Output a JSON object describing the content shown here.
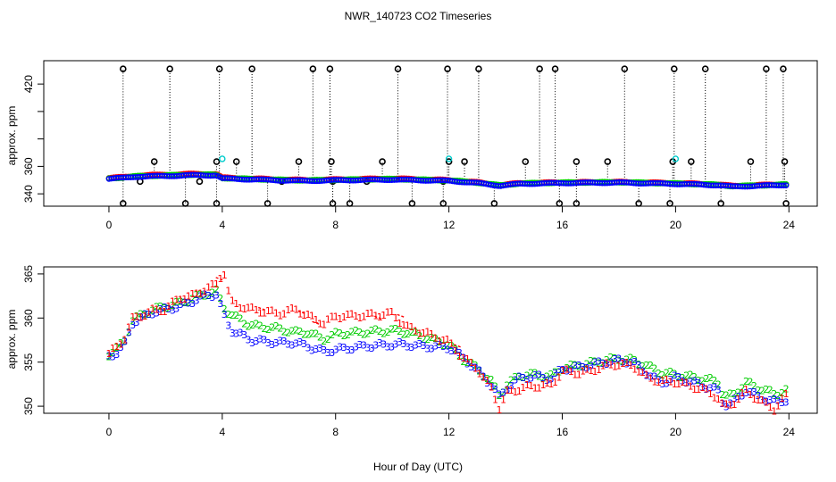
{
  "chart_data": [
    {
      "type": "scatter",
      "panel": "top",
      "title": "NWR_140723  CO2 Timeseries",
      "xlabel": "",
      "ylabel": "approx. ppm",
      "xlim": [
        -2.3,
        25
      ],
      "ylim": [
        331,
        437
      ],
      "xticks": [
        0,
        4,
        8,
        12,
        16,
        20,
        24
      ],
      "yticks": [
        340,
        360,
        380,
        400,
        420
      ],
      "ytick_labels_shown": [
        "340",
        "360",
        "420"
      ],
      "clip_high": 431,
      "clip_low": 333,
      "series": [
        {
          "name": "red",
          "color": "#ff0000",
          "anchors": [
            [
              0,
              351.5
            ],
            [
              0.5,
              352.2
            ],
            [
              1,
              353.3
            ],
            [
              2,
              354
            ],
            [
              3,
              354.5
            ],
            [
              3.8,
              354.5
            ],
            [
              4,
              351.8
            ],
            [
              6,
              350.5
            ],
            [
              7,
              350
            ],
            [
              8,
              350.5
            ],
            [
              10,
              351.2
            ],
            [
              12,
              350
            ],
            [
              13,
              348.4
            ],
            [
              13.8,
              346.3
            ],
            [
              14.5,
              347.8
            ],
            [
              16,
              348.3
            ],
            [
              18,
              348.6
            ],
            [
              19.5,
              348
            ],
            [
              20,
              347.8
            ],
            [
              21.5,
              346.8
            ],
            [
              22,
              345.8
            ],
            [
              23,
              346.4
            ],
            [
              23.9,
              347
            ]
          ]
        },
        {
          "name": "green",
          "color": "#00cc00",
          "anchors": [
            [
              0,
              351.3
            ],
            [
              0.5,
              351.9
            ],
            [
              1,
              352.9
            ],
            [
              2,
              353.4
            ],
            [
              3,
              354
            ],
            [
              3.8,
              353.9
            ],
            [
              4,
              351.5
            ],
            [
              6,
              350.2
            ],
            [
              7,
              349.8
            ],
            [
              8,
              350.2
            ],
            [
              10,
              350.8
            ],
            [
              12,
              349.8
            ],
            [
              13,
              348.2
            ],
            [
              13.8,
              346.2
            ],
            [
              14.5,
              347.6
            ],
            [
              16,
              348.2
            ],
            [
              18,
              348.5
            ],
            [
              19.5,
              347.8
            ],
            [
              20,
              347.6
            ],
            [
              21.5,
              346.6
            ],
            [
              22,
              345.6
            ],
            [
              23,
              346.2
            ],
            [
              23.9,
              346.8
            ]
          ]
        },
        {
          "name": "blue",
          "color": "#0000ff",
          "anchors": [
            [
              0,
              351
            ],
            [
              0.5,
              351.6
            ],
            [
              1,
              352.6
            ],
            [
              2,
              353
            ],
            [
              3,
              353.6
            ],
            [
              3.8,
              353.5
            ],
            [
              4,
              351.2
            ],
            [
              6,
              349.9
            ],
            [
              7,
              349.5
            ],
            [
              8,
              349.9
            ],
            [
              10,
              350.4
            ],
            [
              12,
              349.5
            ],
            [
              13,
              347.9
            ],
            [
              13.8,
              345.9
            ],
            [
              14.5,
              347.3
            ],
            [
              16,
              347.9
            ],
            [
              18,
              348.2
            ],
            [
              19.5,
              347.5
            ],
            [
              20,
              347.3
            ],
            [
              21.5,
              346.3
            ],
            [
              22,
              345.3
            ],
            [
              23,
              345.9
            ],
            [
              23.9,
              346.5
            ]
          ]
        }
      ],
      "cyan_points": [
        [
          4,
          365.5
        ],
        [
          12,
          365.5
        ],
        [
          20,
          365.5
        ]
      ],
      "spikes_high": [
        0.5,
        2.15,
        3.9,
        5.05,
        7.2,
        7.8,
        10.2,
        11.95,
        13.05,
        15.2,
        15.75,
        18.2,
        19.95,
        21.05,
        23.2,
        23.8
      ],
      "spikes_mid": [
        1.6,
        3.8,
        4.5,
        6.7,
        7.85,
        9.65,
        12,
        12.55,
        14.7,
        16.5,
        17.6,
        19.9,
        20.55,
        22.65,
        23.85
      ],
      "spikes_low": [
        0.5,
        2.7,
        3.8,
        5.6,
        7.9,
        8.5,
        10.7,
        11.8,
        13.6,
        15.9,
        16.5,
        18.7,
        19.8,
        21.6,
        23.9
      ],
      "outliers_mid": [
        [
          1.1,
          349
        ],
        [
          3.2,
          349
        ],
        [
          6.1,
          349
        ],
        [
          7.9,
          349
        ],
        [
          9.1,
          349
        ],
        [
          11.8,
          349
        ]
      ]
    },
    {
      "type": "scatter",
      "panel": "bottom",
      "title": "",
      "xlabel": "Hour of Day (UTC)",
      "ylabel": "approx. ppm",
      "xlim": [
        -2.3,
        25
      ],
      "ylim": [
        349.2,
        365.8
      ],
      "xticks": [
        0,
        4,
        8,
        12,
        16,
        20,
        24
      ],
      "yticks": [
        350,
        355,
        360,
        365
      ],
      "series": [
        {
          "name": "1",
          "marker": "1",
          "color": "#ff0000",
          "anchors": [
            [
              0,
              356
            ],
            [
              0.3,
              356.7
            ],
            [
              0.6,
              358
            ],
            [
              0.8,
              359.8
            ],
            [
              1.5,
              360.8
            ],
            [
              2,
              361
            ],
            [
              2.5,
              362.3
            ],
            [
              3,
              362.5
            ],
            [
              3.2,
              363
            ],
            [
              3.8,
              363.8
            ],
            [
              4.05,
              365.5
            ],
            [
              4.3,
              361.8
            ],
            [
              5,
              361
            ],
            [
              6,
              360.5
            ],
            [
              6.6,
              361
            ],
            [
              7,
              360.3
            ],
            [
              7.6,
              359.4
            ],
            [
              8,
              360.2
            ],
            [
              9,
              360.3
            ],
            [
              10,
              360.5
            ],
            [
              10.5,
              359
            ],
            [
              11,
              358.5
            ],
            [
              12,
              357.3
            ],
            [
              12.5,
              355.5
            ],
            [
              13,
              354.3
            ],
            [
              13.5,
              352
            ],
            [
              13.8,
              349.7
            ],
            [
              14,
              351.5
            ],
            [
              14.5,
              352
            ],
            [
              15,
              352.3
            ],
            [
              15.6,
              352.4
            ],
            [
              16,
              354
            ],
            [
              16.5,
              353.8
            ],
            [
              17,
              354
            ],
            [
              17.5,
              354.6
            ],
            [
              18,
              354.8
            ],
            [
              18.5,
              354.6
            ],
            [
              19,
              353.3
            ],
            [
              19.5,
              352.8
            ],
            [
              20,
              352.8
            ],
            [
              21,
              351.9
            ],
            [
              21.5,
              351
            ],
            [
              21.7,
              349.9
            ],
            [
              22,
              350.3
            ],
            [
              22.5,
              351.7
            ],
            [
              23,
              350.6
            ],
            [
              23.5,
              349.7
            ],
            [
              23.9,
              351.2
            ]
          ]
        },
        {
          "name": "2",
          "marker": "2",
          "color": "#00cc00",
          "anchors": [
            [
              0,
              355.9
            ],
            [
              0.3,
              356.5
            ],
            [
              0.6,
              357.6
            ],
            [
              0.8,
              359.7
            ],
            [
              1.5,
              360.9
            ],
            [
              2,
              361.3
            ],
            [
              2.5,
              361.7
            ],
            [
              3,
              362.3
            ],
            [
              3.5,
              362.8
            ],
            [
              3.8,
              363
            ],
            [
              4.05,
              361.3
            ],
            [
              4.3,
              360.4
            ],
            [
              5,
              359.2
            ],
            [
              6,
              358.8
            ],
            [
              6.6,
              358.4
            ],
            [
              7,
              358.4
            ],
            [
              7.6,
              357.6
            ],
            [
              8,
              358.2
            ],
            [
              9,
              358.4
            ],
            [
              10,
              358.6
            ],
            [
              10.5,
              358.4
            ],
            [
              11,
              358
            ],
            [
              12,
              357
            ],
            [
              12.5,
              355.4
            ],
            [
              13,
              354.3
            ],
            [
              13.5,
              352.8
            ],
            [
              13.8,
              351.2
            ],
            [
              14,
              352.3
            ],
            [
              14.5,
              353.5
            ],
            [
              15,
              353.6
            ],
            [
              15.6,
              353.4
            ],
            [
              16,
              354.3
            ],
            [
              16.5,
              354.6
            ],
            [
              17,
              354.9
            ],
            [
              17.5,
              355.2
            ],
            [
              18,
              355.4
            ],
            [
              18.5,
              355.2
            ],
            [
              19,
              354.6
            ],
            [
              19.5,
              353.8
            ],
            [
              20,
              353.6
            ],
            [
              21,
              353.1
            ],
            [
              21.5,
              352.8
            ],
            [
              21.7,
              351.1
            ],
            [
              22,
              351.2
            ],
            [
              22.5,
              352.7
            ],
            [
              23,
              352
            ],
            [
              23.5,
              351.4
            ],
            [
              23.9,
              351.8
            ]
          ]
        },
        {
          "name": "3",
          "marker": "3",
          "color": "#0000ff",
          "anchors": [
            [
              0,
              355.7
            ],
            [
              0.3,
              356.1
            ],
            [
              0.6,
              357.2
            ],
            [
              0.8,
              359.4
            ],
            [
              1.5,
              360.6
            ],
            [
              2,
              361
            ],
            [
              2.5,
              361.3
            ],
            [
              3,
              362
            ],
            [
              3.5,
              362.6
            ],
            [
              3.8,
              362.7
            ],
            [
              4.05,
              360.4
            ],
            [
              4.3,
              358.7
            ],
            [
              5,
              357.5
            ],
            [
              6,
              357.2
            ],
            [
              6.6,
              357.2
            ],
            [
              7,
              356.8
            ],
            [
              7.6,
              356.2
            ],
            [
              8,
              356.4
            ],
            [
              9,
              356.8
            ],
            [
              10,
              357
            ],
            [
              10.5,
              357
            ],
            [
              11,
              356.8
            ],
            [
              12,
              356.7
            ],
            [
              12.5,
              355.5
            ],
            [
              13,
              354.1
            ],
            [
              13.5,
              352.4
            ],
            [
              13.8,
              351
            ],
            [
              14,
              352
            ],
            [
              14.5,
              353.2
            ],
            [
              15,
              353.4
            ],
            [
              15.6,
              353.2
            ],
            [
              16,
              354.2
            ],
            [
              16.5,
              354.4
            ],
            [
              17,
              354.7
            ],
            [
              17.5,
              355
            ],
            [
              18,
              355.2
            ],
            [
              18.5,
              355
            ],
            [
              19,
              353.7
            ],
            [
              19.5,
              352.6
            ],
            [
              20,
              353.3
            ],
            [
              21,
              352.3
            ],
            [
              21.5,
              351.8
            ],
            [
              21.7,
              350.1
            ],
            [
              22,
              350.4
            ],
            [
              22.5,
              351.8
            ],
            [
              23,
              351
            ],
            [
              23.5,
              350.5
            ],
            [
              23.9,
              350.7
            ]
          ]
        }
      ],
      "red_dashes": [
        [
          1.9,
          361.2
        ],
        [
          2.2,
          361.4
        ],
        [
          3.9,
          364.6
        ],
        [
          5.4,
          361.2
        ],
        [
          6.8,
          360.8
        ],
        [
          7.3,
          359.6
        ],
        [
          9.5,
          360.2
        ],
        [
          10.3,
          360.4
        ],
        [
          12.3,
          357
        ]
      ]
    }
  ]
}
